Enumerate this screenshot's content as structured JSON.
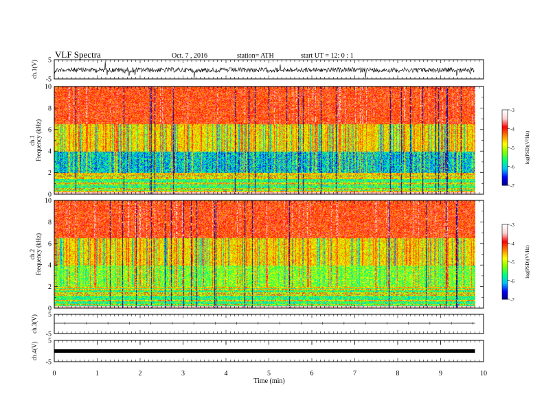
{
  "header": {
    "title": "VLF  Spectra",
    "date": "Oct. 7  , 2016",
    "station": "station= ATH",
    "start": "start  UT  =    12: 0   : 1"
  },
  "chart_data": {
    "type": "heatmap",
    "x_label": "Time  (min)",
    "x_range": [
      0,
      10
    ],
    "x_ticks": [
      "0",
      "1",
      "2",
      "3",
      "4",
      "5",
      "6",
      "7",
      "8",
      "9",
      "10"
    ],
    "data_end_min": 9.8,
    "panels": [
      {
        "kind": "waveform",
        "label": "ch.1(V)",
        "ylim": [
          -5,
          5
        ],
        "ticks": [
          "5",
          "-5"
        ]
      },
      {
        "kind": "spectrogram",
        "label": "ch.1",
        "ylabel": "Frequency  (kHz)",
        "ylim": [
          0,
          10
        ],
        "ticks": [
          "10",
          "8",
          "6",
          "4",
          "2",
          "0"
        ]
      },
      {
        "kind": "spectrogram",
        "label": "ch.2",
        "ylabel": "Frequency  (kHz)",
        "ylim": [
          0,
          10
        ],
        "ticks": [
          "10",
          "8",
          "6",
          "4",
          "2",
          "0"
        ]
      },
      {
        "kind": "waveform",
        "label": "ch.3(V)",
        "ylim": [
          -5,
          5
        ],
        "ticks": [
          "5",
          "-5"
        ]
      },
      {
        "kind": "waveform",
        "label": "ch.4(V)",
        "ylim": [
          -5,
          5
        ],
        "ticks": [
          "5",
          "-5"
        ]
      }
    ],
    "colorbar": {
      "label": "log(PSD)(V²/Hz)",
      "range": [
        -7,
        -3
      ],
      "ticks": [
        "-3",
        "-4",
        "-5",
        "-6",
        "-7"
      ],
      "colors": [
        "#000080",
        "#0000ff",
        "#00bfff",
        "#00ff80",
        "#80ff00",
        "#ffff00",
        "#ff8000",
        "#ff0000",
        "#ffd0d0",
        "#ffffff"
      ]
    }
  }
}
